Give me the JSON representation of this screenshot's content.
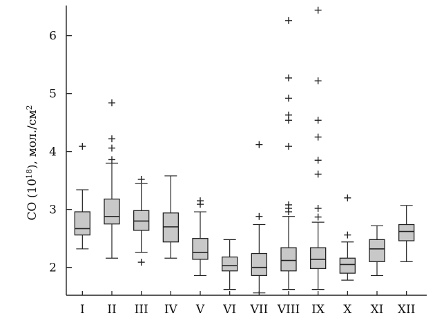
{
  "chart_data": {
    "type": "box",
    "ylabel_main": "CO (10",
    "ylabel_exp": "18",
    "ylabel_tail": "), мол./см",
    "ylabel_exp2": "2",
    "ylim": [
      1.52,
      6.52
    ],
    "yticks": [
      2,
      3,
      4,
      5,
      6
    ],
    "grid": false,
    "box_color": "#c8c8c8",
    "categories": [
      "I",
      "II",
      "III",
      "IV",
      "V",
      "VI",
      "VII",
      "VIII",
      "IX",
      "X",
      "XI",
      "XII"
    ],
    "boxes": [
      {
        "q1": 2.56,
        "median": 2.67,
        "q3": 2.96,
        "whisker_low": 2.32,
        "whisker_high": 3.34,
        "outliers": [
          4.09
        ]
      },
      {
        "q1": 2.75,
        "median": 2.88,
        "q3": 3.18,
        "whisker_low": 2.16,
        "whisker_high": 3.8,
        "outliers": [
          3.86,
          4.06,
          4.22,
          4.84
        ]
      },
      {
        "q1": 2.64,
        "median": 2.8,
        "q3": 2.98,
        "whisker_low": 2.26,
        "whisker_high": 3.45,
        "outliers": [
          2.09,
          3.52
        ]
      },
      {
        "q1": 2.44,
        "median": 2.7,
        "q3": 2.94,
        "whisker_low": 2.16,
        "whisker_high": 3.58,
        "outliers": []
      },
      {
        "q1": 2.14,
        "median": 2.26,
        "q3": 2.5,
        "whisker_low": 1.86,
        "whisker_high": 2.96,
        "outliers": [
          3.09,
          3.15
        ]
      },
      {
        "q1": 1.94,
        "median": 2.03,
        "q3": 2.18,
        "whisker_low": 1.62,
        "whisker_high": 2.48,
        "outliers": []
      },
      {
        "q1": 1.86,
        "median": 2.0,
        "q3": 2.24,
        "whisker_low": 1.56,
        "whisker_high": 2.74,
        "outliers": [
          2.88,
          4.12
        ]
      },
      {
        "q1": 1.94,
        "median": 2.12,
        "q3": 2.34,
        "whisker_low": 1.62,
        "whisker_high": 2.88,
        "outliers": [
          2.96,
          3.02,
          3.08,
          4.09,
          4.54,
          4.63,
          4.92,
          5.27,
          6.26
        ]
      },
      {
        "q1": 1.98,
        "median": 2.14,
        "q3": 2.34,
        "whisker_low": 1.62,
        "whisker_high": 2.78,
        "outliers": [
          2.87,
          3.02,
          3.61,
          3.85,
          4.25,
          4.54,
          5.22,
          6.44
        ]
      },
      {
        "q1": 1.9,
        "median": 2.05,
        "q3": 2.16,
        "whisker_low": 1.78,
        "whisker_high": 2.44,
        "outliers": [
          2.56,
          3.2
        ]
      },
      {
        "q1": 2.1,
        "median": 2.32,
        "q3": 2.48,
        "whisker_low": 1.86,
        "whisker_high": 2.72,
        "outliers": []
      },
      {
        "q1": 2.46,
        "median": 2.62,
        "q3": 2.74,
        "whisker_low": 2.1,
        "whisker_high": 3.07,
        "outliers": []
      }
    ]
  }
}
